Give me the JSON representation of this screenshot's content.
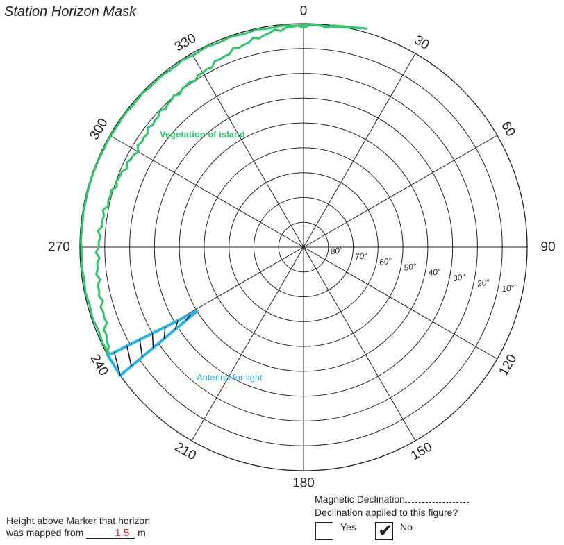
{
  "title": "Station Horizon Mask",
  "azimuth_labels": [
    "0",
    "30",
    "60",
    "90",
    "120",
    "150",
    "180",
    "210",
    "240",
    "270",
    "300",
    "330"
  ],
  "elevation_labels": [
    "80°",
    "70°",
    "60°",
    "50°",
    "40°",
    "30°",
    "20°",
    "10°"
  ],
  "obstructions": {
    "vegetation": {
      "label": "Vegetation of island",
      "color": "#2fc66b",
      "azimuth_range_deg": [
        240,
        8
      ],
      "max_elevation_deg": 15
    },
    "antenna": {
      "label": "Antenna for light",
      "color": "#27b3e6",
      "azimuth_deg": [
        235,
        241
      ],
      "elevation_deg": [
        0,
        40
      ]
    }
  },
  "height": {
    "line1": "Height above Marker that horizon",
    "line2": "was mapped from",
    "value": "1.5",
    "unit": "m"
  },
  "declination": {
    "label": "Magnetic Declination",
    "question": "Declination applied to this figure?",
    "yes_label": "Yes",
    "no_label": "No",
    "yes_checked": false,
    "no_checked": true
  },
  "colors": {
    "line": "#222222",
    "vegetation": "#2fc66b",
    "antenna": "#27b3e6",
    "height_value": "#e8202a"
  }
}
